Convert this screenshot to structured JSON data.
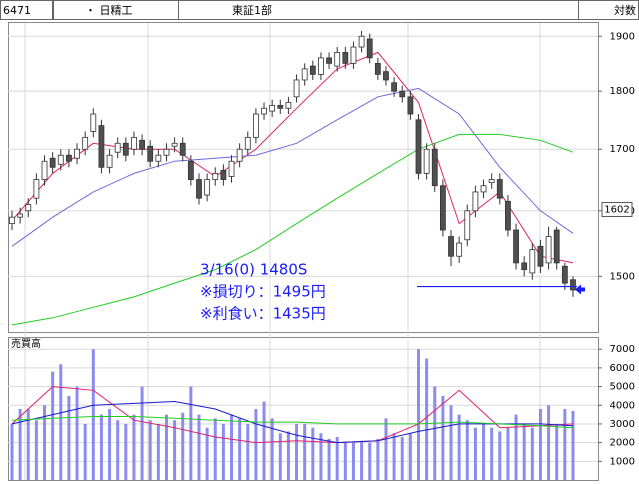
{
  "header": {
    "code": "6471",
    "name": "・ 日精工",
    "market": "東証1部",
    "scale": "対数"
  },
  "chart_data": [
    {
      "type": "candlestick",
      "log_scale": true,
      "grid": true,
      "ylim": [
        1420,
        1925
      ],
      "yticks": [
        1500,
        1600,
        1700,
        1800,
        1900
      ],
      "up_color": "#ffffff",
      "down_color": "#505050",
      "open": [
        1580,
        1590,
        1600,
        1620,
        1650,
        1685,
        1675,
        1690,
        1685,
        1700,
        1730,
        1740,
        1670,
        1695,
        1710,
        1700,
        1715,
        1705,
        1680,
        1690,
        1705,
        1710,
        1680,
        1650,
        1625,
        1650,
        1665,
        1655,
        1680,
        1700,
        1720,
        1760,
        1765,
        1775,
        1770,
        1790,
        1820,
        1845,
        1830,
        1860,
        1845,
        1870,
        1850,
        1880,
        1895,
        1850,
        1835,
        1815,
        1800,
        1790,
        1750,
        1660,
        1700,
        1640,
        1560,
        1530,
        1555,
        1600,
        1630,
        1645,
        1650,
        1615,
        1570,
        1520,
        1505,
        1545,
        1520,
        1570,
        1515,
        1495
      ],
      "high": [
        1600,
        1605,
        1620,
        1660,
        1690,
        1695,
        1700,
        1700,
        1710,
        1730,
        1770,
        1750,
        1700,
        1720,
        1720,
        1730,
        1725,
        1715,
        1700,
        1710,
        1720,
        1720,
        1690,
        1660,
        1660,
        1670,
        1675,
        1690,
        1710,
        1730,
        1770,
        1780,
        1785,
        1785,
        1790,
        1830,
        1850,
        1855,
        1870,
        1870,
        1880,
        1880,
        1890,
        1910,
        1905,
        1860,
        1845,
        1825,
        1810,
        1800,
        1760,
        1710,
        1710,
        1650,
        1570,
        1560,
        1610,
        1640,
        1650,
        1660,
        1660,
        1625,
        1580,
        1530,
        1550,
        1555,
        1575,
        1575,
        1520,
        1500
      ],
      "low": [
        1570,
        1580,
        1590,
        1610,
        1640,
        1660,
        1665,
        1670,
        1675,
        1690,
        1720,
        1660,
        1660,
        1685,
        1680,
        1690,
        1690,
        1670,
        1670,
        1680,
        1695,
        1680,
        1640,
        1610,
        1615,
        1640,
        1640,
        1645,
        1670,
        1690,
        1710,
        1750,
        1755,
        1760,
        1760,
        1780,
        1810,
        1820,
        1820,
        1840,
        1835,
        1840,
        1840,
        1870,
        1850,
        1820,
        1810,
        1790,
        1780,
        1750,
        1650,
        1650,
        1630,
        1560,
        1515,
        1520,
        1545,
        1590,
        1620,
        1635,
        1610,
        1560,
        1510,
        1500,
        1495,
        1505,
        1510,
        1510,
        1480,
        1470
      ],
      "close": [
        1590,
        1595,
        1610,
        1650,
        1680,
        1670,
        1690,
        1680,
        1700,
        1720,
        1760,
        1670,
        1690,
        1710,
        1690,
        1720,
        1700,
        1680,
        1690,
        1700,
        1710,
        1690,
        1650,
        1620,
        1650,
        1660,
        1650,
        1680,
        1700,
        1720,
        1760,
        1770,
        1775,
        1770,
        1780,
        1820,
        1840,
        1830,
        1860,
        1850,
        1870,
        1850,
        1880,
        1900,
        1860,
        1830,
        1820,
        1800,
        1790,
        1760,
        1660,
        1700,
        1640,
        1570,
        1530,
        1550,
        1600,
        1630,
        1640,
        1650,
        1620,
        1570,
        1520,
        1510,
        1540,
        1515,
        1560,
        1520,
        1490,
        1480
      ],
      "series": [
        {
          "color": "#e0206a",
          "x": [
            0,
            5,
            10,
            15,
            20,
            25,
            30,
            35,
            40,
            45,
            50,
            55,
            60,
            65,
            69
          ],
          "values": [
            1585,
            1660,
            1710,
            1700,
            1700,
            1655,
            1700,
            1770,
            1840,
            1870,
            1780,
            1580,
            1630,
            1530,
            1520
          ]
        },
        {
          "color": "#6a6ad8",
          "x": [
            0,
            5,
            10,
            15,
            20,
            25,
            30,
            35,
            40,
            45,
            50,
            55,
            60,
            65,
            69
          ],
          "values": [
            1545,
            1590,
            1630,
            1660,
            1680,
            1685,
            1690,
            1710,
            1750,
            1790,
            1805,
            1760,
            1670,
            1600,
            1565
          ]
        },
        {
          "color": "#22cc22",
          "x": [
            0,
            5,
            10,
            15,
            20,
            25,
            30,
            35,
            40,
            45,
            50,
            55,
            60,
            65,
            69
          ],
          "values": [
            1430,
            1440,
            1455,
            1470,
            1490,
            1510,
            1540,
            1580,
            1620,
            1660,
            1700,
            1725,
            1725,
            1715,
            1695
          ]
        }
      ],
      "hline": 1485,
      "hline_color": "#1a1aff",
      "price_label": 1602,
      "annotations": [
        "3/16(0) 1480S",
        "※損切り：1495円",
        "※利食い：1435円"
      ]
    },
    {
      "type": "bar",
      "title": "売買高",
      "grid": true,
      "color": "#8c8cf0",
      "ylim": [
        0,
        7600
      ],
      "yticks": [
        1000,
        2000,
        3000,
        4000,
        5000,
        6000,
        7000
      ],
      "values": [
        3000,
        3800,
        3800,
        3200,
        4000,
        5800,
        6200,
        4500,
        5000,
        3000,
        7000,
        3500,
        3800,
        3200,
        3000,
        3500,
        5000,
        3200,
        3000,
        3500,
        3200,
        3600,
        5000,
        3500,
        2800,
        3300,
        3000,
        3500,
        3300,
        3000,
        3800,
        4200,
        3300,
        2500,
        2600,
        3000,
        3000,
        2800,
        2500,
        2200,
        2300,
        2000,
        2000,
        2100,
        2000,
        2200,
        3300,
        2500,
        2300,
        2500,
        7000,
        6500,
        5000,
        4500,
        4000,
        3500,
        3200,
        2800,
        3000,
        2800,
        2600,
        2800,
        3500,
        3000,
        2800,
        3800,
        4000,
        3000,
        3800,
        3700
      ],
      "series": [
        {
          "color": "#e0206a",
          "x": [
            0,
            5,
            10,
            15,
            20,
            25,
            30,
            35,
            40,
            45,
            50,
            55,
            60,
            65,
            69
          ],
          "values": [
            3000,
            5000,
            4800,
            3200,
            2800,
            2300,
            2000,
            2100,
            2000,
            2100,
            3000,
            4800,
            2800,
            2900,
            3000
          ]
        },
        {
          "color": "#1a1acc",
          "x": [
            0,
            5,
            10,
            15,
            20,
            25,
            30,
            35,
            40,
            45,
            50,
            55,
            60,
            65,
            69
          ],
          "values": [
            3000,
            3500,
            4000,
            4100,
            4200,
            3800,
            3000,
            2400,
            2000,
            2100,
            2600,
            3000,
            3000,
            3000,
            2900
          ]
        },
        {
          "color": "#22cc22",
          "x": [
            0,
            5,
            10,
            15,
            20,
            25,
            30,
            35,
            40,
            45,
            50,
            55,
            60,
            65,
            69
          ],
          "values": [
            3200,
            3300,
            3400,
            3400,
            3300,
            3200,
            3100,
            3100,
            3000,
            3000,
            3000,
            3100,
            3000,
            2900,
            2800
          ]
        }
      ]
    }
  ]
}
